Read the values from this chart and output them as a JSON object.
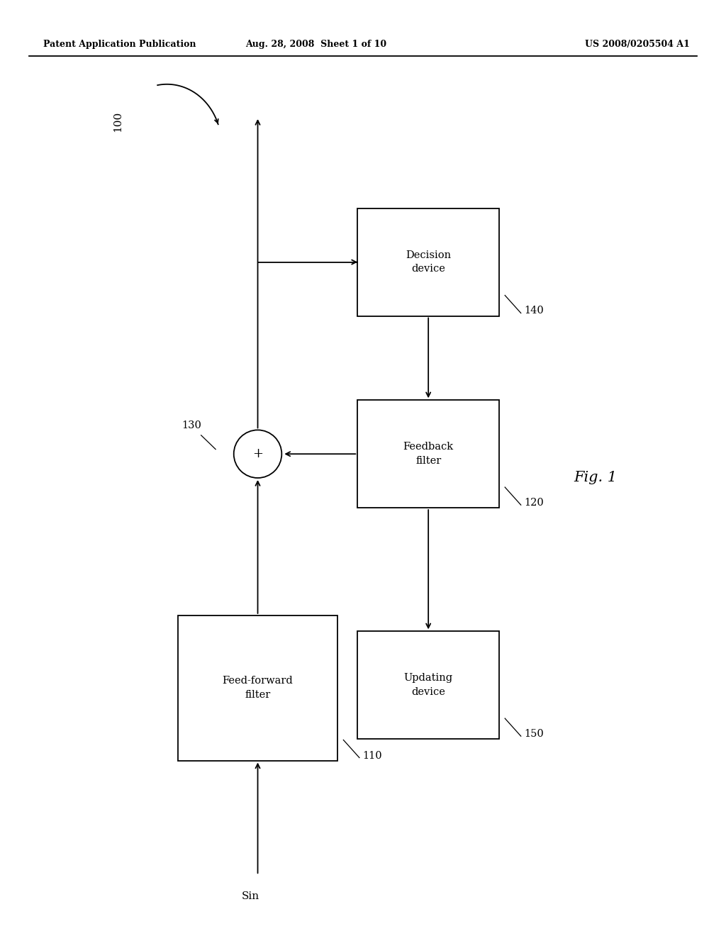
{
  "bg_color": "#ffffff",
  "line_color": "#000000",
  "header_left": "Patent Application Publication",
  "header_mid": "Aug. 28, 2008  Sheet 1 of 10",
  "header_right": "US 2008/0205504 A1",
  "figure_label": "Fig. 1"
}
